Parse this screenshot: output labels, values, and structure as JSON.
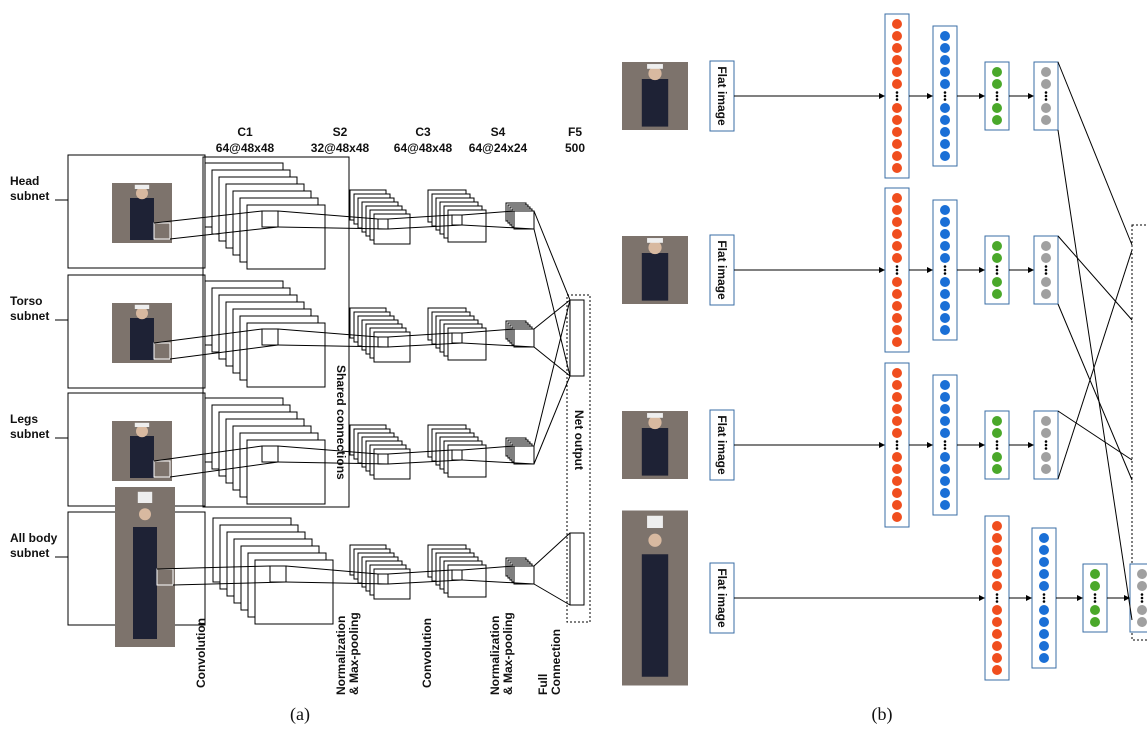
{
  "panel_a": {
    "caption": "(a)",
    "layers": [
      {
        "name": "C1",
        "size": "64@48x48"
      },
      {
        "name": "S2",
        "size": "32@48x48"
      },
      {
        "name": "C3",
        "size": "64@48x48"
      },
      {
        "name": "S4",
        "size": "64@24x24"
      },
      {
        "name": "F5",
        "size": "500"
      }
    ],
    "subnets": [
      [
        "Head",
        "subnet"
      ],
      [
        "Torso",
        "subnet"
      ],
      [
        "Legs",
        "subnet"
      ],
      [
        "All body",
        "subnet"
      ]
    ],
    "shared_connections": "Shared connections",
    "net_output": "Net output",
    "operations": [
      [
        "Convolution"
      ],
      [
        "Normalization",
        "& Max-pooling"
      ],
      [
        "Convolution"
      ],
      [
        "Normalization",
        "& Max-pooling"
      ],
      [
        "Full",
        "Connection"
      ]
    ]
  },
  "panel_b": {
    "caption": "(b)",
    "rows": [
      {
        "input_label": "Flat image"
      },
      {
        "input_label": "Flat image"
      },
      {
        "input_label": "Flat image"
      },
      {
        "input_label": "Flat image"
      }
    ]
  }
}
